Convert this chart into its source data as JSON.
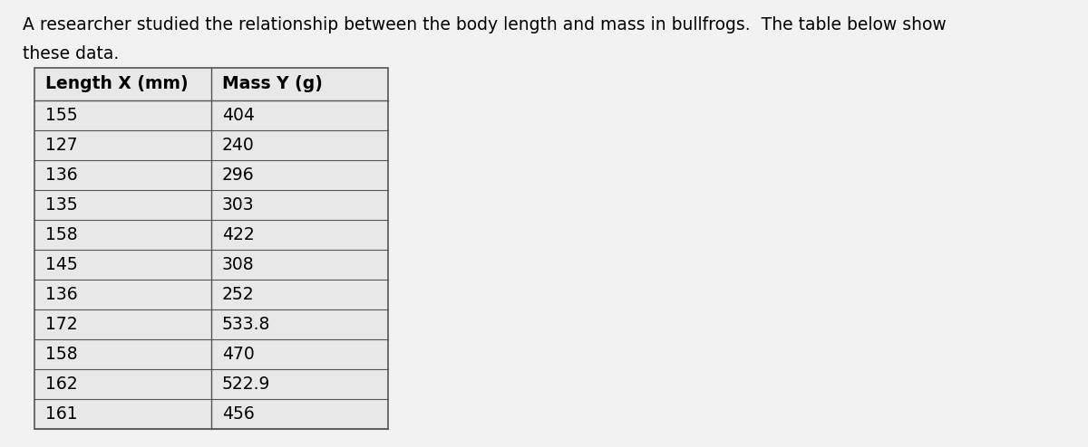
{
  "title_line1": "A researcher studied the relationship between the body length and mass in bullfrogs.  The table below show",
  "title_line2": "these data.",
  "col1_header": "Length X (mm)",
  "col2_header": "Mass Y (g)",
  "length_values": [
    155,
    127,
    136,
    135,
    158,
    145,
    136,
    172,
    158,
    162,
    161
  ],
  "mass_values": [
    "404",
    "240",
    "296",
    "303",
    "422",
    "308",
    "252",
    "533.8",
    "470",
    "522.9",
    "456"
  ],
  "background_color": "#f2f2f2",
  "table_bg": "#e8e8e8",
  "header_bg": "#e8e8e8",
  "text_color": "#000000",
  "title_fontsize": 13.5,
  "header_fontsize": 13.5,
  "data_fontsize": 13.5,
  "fig_width": 12.0,
  "fig_height": 4.94
}
